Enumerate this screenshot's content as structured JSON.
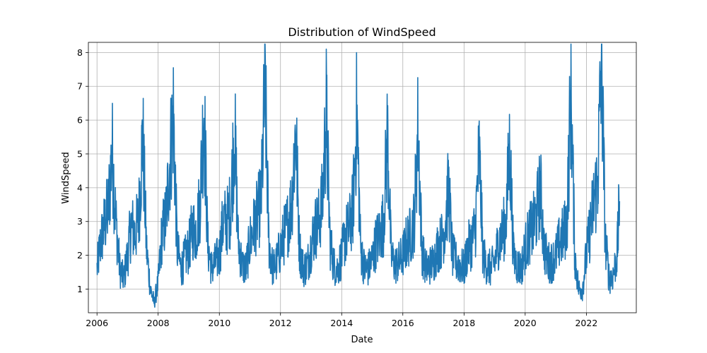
{
  "chart_data": {
    "type": "line",
    "title": "Distribution of WindSpeed",
    "xlabel": "Date",
    "ylabel": "WindSpeed",
    "xlim": [
      "2005-09-20",
      "2023-08-20"
    ],
    "ylim": [
      0.3,
      8.3
    ],
    "x_ticks": [
      "2006",
      "2008",
      "2010",
      "2012",
      "2014",
      "2016",
      "2018",
      "2020",
      "2022"
    ],
    "y_ticks": [
      "1",
      "2",
      "3",
      "4",
      "5",
      "6",
      "7",
      "8"
    ],
    "grid": true,
    "color": "#1f77b4",
    "series": [
      {
        "x": [
          "2006-01-01",
          "2006-02-15",
          "2006-04-01",
          "2006-05-15",
          "2006-07-01",
          "2006-08-15",
          "2006-10-01",
          "2006-11-15",
          "2007-01-01",
          "2007-02-15",
          "2007-04-01",
          "2007-05-15",
          "2007-07-01",
          "2007-08-15",
          "2007-10-01",
          "2007-11-15",
          "2008-01-01",
          "2008-02-15",
          "2008-04-01",
          "2008-05-15",
          "2008-07-01",
          "2008-08-15",
          "2008-10-01",
          "2008-11-15",
          "2009-01-01",
          "2009-02-15",
          "2009-04-01",
          "2009-05-15",
          "2009-07-01",
          "2009-08-15",
          "2009-10-01",
          "2009-11-15",
          "2010-01-01",
          "2010-02-15",
          "2010-04-01",
          "2010-05-15",
          "2010-07-01",
          "2010-08-15",
          "2010-10-01",
          "2010-11-15",
          "2011-01-01",
          "2011-02-15",
          "2011-04-01",
          "2011-05-15",
          "2011-07-01",
          "2011-08-15",
          "2011-10-01",
          "2011-11-15",
          "2012-01-01",
          "2012-02-15",
          "2012-04-01",
          "2012-05-15",
          "2012-07-01",
          "2012-08-15",
          "2012-10-01",
          "2012-11-15",
          "2013-01-01",
          "2013-02-15",
          "2013-04-01",
          "2013-05-15",
          "2013-07-01",
          "2013-08-15",
          "2013-10-01",
          "2013-11-15",
          "2014-01-01",
          "2014-02-15",
          "2014-04-01",
          "2014-05-15",
          "2014-07-01",
          "2014-08-15",
          "2014-10-01",
          "2014-11-15",
          "2015-01-01",
          "2015-02-15",
          "2015-04-01",
          "2015-05-15",
          "2015-07-01",
          "2015-08-15",
          "2015-10-01",
          "2015-11-15",
          "2016-01-01",
          "2016-02-15",
          "2016-04-01",
          "2016-05-15",
          "2016-07-01",
          "2016-08-15",
          "2016-10-01",
          "2016-11-15",
          "2017-01-01",
          "2017-02-15",
          "2017-04-01",
          "2017-05-15",
          "2017-07-01",
          "2017-08-15",
          "2017-10-01",
          "2017-11-15",
          "2018-01-01",
          "2018-02-15",
          "2018-04-01",
          "2018-05-15",
          "2018-07-01",
          "2018-08-15",
          "2018-10-01",
          "2018-11-15",
          "2019-01-01",
          "2019-02-15",
          "2019-04-01",
          "2019-05-15",
          "2019-07-01",
          "2019-08-15",
          "2019-10-01",
          "2019-11-15",
          "2020-01-01",
          "2020-02-15",
          "2020-04-01",
          "2020-05-15",
          "2020-07-01",
          "2020-08-15",
          "2020-10-01",
          "2020-11-15",
          "2021-01-01",
          "2021-02-15",
          "2021-04-01",
          "2021-05-15",
          "2021-07-01",
          "2021-08-15",
          "2021-10-01",
          "2021-11-15",
          "2022-01-01",
          "2022-02-15",
          "2022-04-01",
          "2022-05-15",
          "2022-07-01",
          "2022-08-15",
          "2022-10-01",
          "2022-11-15",
          "2023-01-01",
          "2023-02-01"
        ],
        "y": [
          1.6,
          2.4,
          2.9,
          3.4,
          5.1,
          3.0,
          1.6,
          1.3,
          2.0,
          2.9,
          2.6,
          3.2,
          5.6,
          2.2,
          1.0,
          0.6,
          1.2,
          2.6,
          3.1,
          4.6,
          6.2,
          2.2,
          1.6,
          1.9,
          2.2,
          2.8,
          2.7,
          3.6,
          6.4,
          2.3,
          1.6,
          1.8,
          2.0,
          3.0,
          3.0,
          3.4,
          5.8,
          2.4,
          1.7,
          1.6,
          2.4,
          2.8,
          3.2,
          3.6,
          7.0,
          2.4,
          1.6,
          1.8,
          2.2,
          2.6,
          3.0,
          3.6,
          5.8,
          2.2,
          1.6,
          1.7,
          2.3,
          2.8,
          3.0,
          3.6,
          6.2,
          2.4,
          1.7,
          1.6,
          2.0,
          2.6,
          2.8,
          3.4,
          6.2,
          2.2,
          1.6,
          1.6,
          1.9,
          2.4,
          2.6,
          3.0,
          5.6,
          2.0,
          1.7,
          1.8,
          2.0,
          2.4,
          2.6,
          3.0,
          5.8,
          2.2,
          1.6,
          1.7,
          1.8,
          2.2,
          2.4,
          2.8,
          4.0,
          2.0,
          1.8,
          1.7,
          1.6,
          2.2,
          2.4,
          2.8,
          5.0,
          2.0,
          1.7,
          1.6,
          1.8,
          2.4,
          2.6,
          3.0,
          5.2,
          2.0,
          1.7,
          1.6,
          2.2,
          2.6,
          2.8,
          3.2,
          4.0,
          2.2,
          1.8,
          1.8,
          2.0,
          2.4,
          2.6,
          3.0,
          7.0,
          2.0,
          1.0,
          1.0,
          2.0,
          2.8,
          3.6,
          4.2,
          7.8,
          2.4,
          1.3,
          1.4,
          2.0,
          3.6
        ]
      }
    ]
  }
}
